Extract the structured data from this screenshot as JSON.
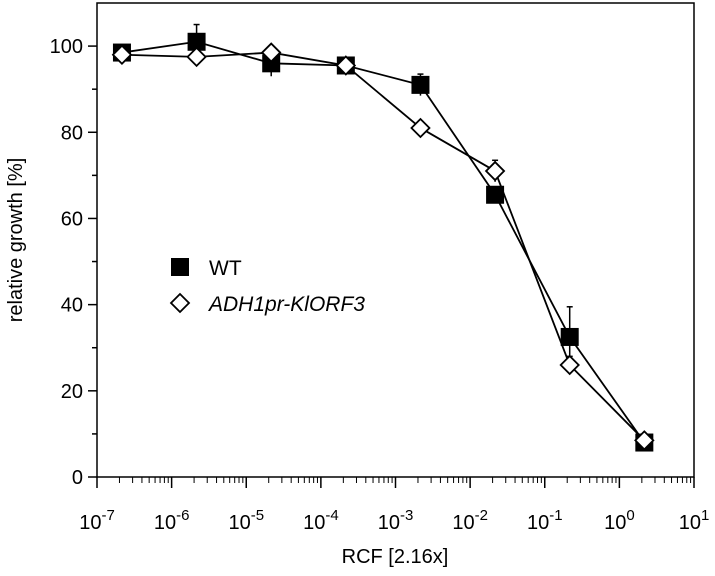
{
  "chart_data": {
    "type": "line",
    "xlabel": "RCF [2.16x]",
    "ylabel": "relative growth [%]",
    "xscale": "log",
    "xlim": [
      1e-07,
      10
    ],
    "ylim": [
      0,
      110
    ],
    "y_ticks": [
      "0",
      "20",
      "40",
      "60",
      "80",
      "100"
    ],
    "x_ticks": [
      {
        "base": "10",
        "exp": "-7"
      },
      {
        "base": "10",
        "exp": "-6"
      },
      {
        "base": "10",
        "exp": "-5"
      },
      {
        "base": "10",
        "exp": "-4"
      },
      {
        "base": "10",
        "exp": "-3"
      },
      {
        "base": "10",
        "exp": "-2"
      },
      {
        "base": "10",
        "exp": "-1"
      },
      {
        "base": "10",
        "exp": "0"
      },
      {
        "base": "10",
        "exp": "1"
      }
    ],
    "legend_position": "left-middle",
    "grid": false,
    "series": [
      {
        "name": "WT",
        "marker": "filled-square",
        "color": "#000000",
        "x": [
          2.16e-07,
          2.16e-06,
          2.16e-05,
          0.000216,
          0.00216,
          0.0216,
          0.216,
          2.16
        ],
        "y": [
          98.5,
          101,
          96,
          95.5,
          91,
          65.5,
          32.5,
          8
        ],
        "err": [
          1.5,
          4,
          3,
          1,
          2.5,
          1.5,
          7,
          1
        ]
      },
      {
        "name": "ADH1pr-KlORF3",
        "marker": "open-diamond",
        "color": "#000000",
        "x": [
          2.16e-07,
          2.16e-06,
          2.16e-05,
          0.000216,
          0.00216,
          0.0216,
          0.216,
          2.16
        ],
        "y": [
          98,
          97.5,
          98.5,
          95.5,
          81,
          71,
          26,
          8.5
        ],
        "err": [
          1,
          1,
          1,
          1,
          1.5,
          2.5,
          2,
          0.5
        ]
      }
    ]
  }
}
